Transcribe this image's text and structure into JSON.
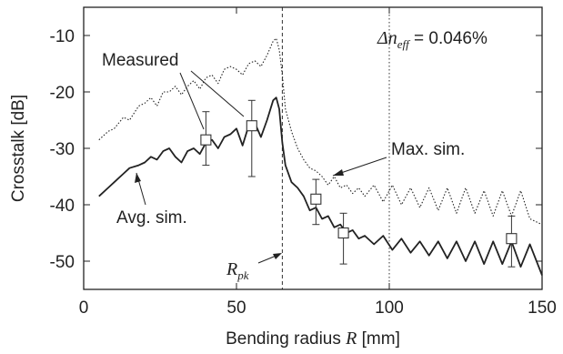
{
  "chart_data": {
    "type": "line",
    "xlabel": "Bending radius",
    "xlabel_var": "R",
    "xlabel_unit": "[mm]",
    "ylabel": "Crosstalk [dB]",
    "xlim": [
      0,
      150
    ],
    "ylim": [
      -55,
      -5
    ],
    "x_ticks": [
      0,
      50,
      100,
      150
    ],
    "y_ticks": [
      -10,
      -20,
      -30,
      -40,
      -50
    ],
    "grid": false,
    "annotations": {
      "delta_neff_symbol": "Δn",
      "delta_neff_sub": "eff",
      "delta_neff_value": "= 0.046%",
      "measured": "Measured",
      "max_sim": "Max. sim.",
      "avg_sim": "Avg. sim.",
      "rpk_main": "R",
      "rpk_sub": "pk"
    },
    "reference_lines": [
      {
        "x": 65,
        "style": "dashed"
      },
      {
        "x": 100,
        "style": "dotted"
      }
    ],
    "series": [
      {
        "name": "Avg. sim.",
        "style": "solid",
        "x": [
          5,
          8,
          10,
          13,
          15,
          18,
          20,
          22,
          24,
          26,
          28,
          30,
          32,
          34,
          36,
          38,
          40,
          42,
          44,
          46,
          48,
          50,
          52,
          54,
          56,
          58,
          60,
          62,
          63,
          64,
          65,
          66,
          68,
          70,
          72,
          74,
          76,
          78,
          80,
          82,
          84,
          86,
          88,
          90,
          92,
          95,
          98,
          101,
          104,
          107,
          110,
          113,
          116,
          119,
          122,
          125,
          128,
          131,
          134,
          137,
          140,
          143,
          146,
          150
        ],
        "y": [
          -38.5,
          -37,
          -36,
          -34.5,
          -33.5,
          -33,
          -32.5,
          -31.5,
          -32,
          -30.5,
          -30,
          -31.5,
          -32.5,
          -30.5,
          -30,
          -31,
          -29,
          -28.5,
          -30,
          -28,
          -27.5,
          -26.5,
          -29.5,
          -26,
          -25.5,
          -28,
          -25,
          -21.5,
          -21,
          -23,
          -29,
          -33,
          -36,
          -37,
          -38.5,
          -41,
          -40.5,
          -42.5,
          -42,
          -44,
          -43.5,
          -45,
          -44.5,
          -46,
          -45.5,
          -47,
          -45.5,
          -48,
          -46,
          -48.5,
          -46.5,
          -49,
          -46.5,
          -49.5,
          -46.5,
          -50,
          -46.5,
          -50.5,
          -46.5,
          -50.5,
          -46.5,
          -51,
          -47,
          -52.5
        ]
      },
      {
        "name": "Max. sim.",
        "style": "dotted",
        "x": [
          5,
          8,
          10,
          13,
          15,
          18,
          20,
          22,
          24,
          26,
          28,
          30,
          32,
          34,
          36,
          38,
          40,
          42,
          44,
          46,
          48,
          50,
          52,
          54,
          56,
          58,
          60,
          62,
          63,
          64,
          65,
          66,
          68,
          70,
          72,
          74,
          76,
          78,
          80,
          82,
          84,
          86,
          88,
          90,
          92,
          95,
          98,
          101,
          104,
          107,
          110,
          113,
          116,
          119,
          122,
          125,
          128,
          131,
          134,
          137,
          140,
          143,
          146,
          150
        ],
        "y": [
          -28.5,
          -27,
          -26.5,
          -24.5,
          -25,
          -22.5,
          -22,
          -21,
          -22.5,
          -20,
          -20,
          -19,
          -20.5,
          -19,
          -18,
          -19.5,
          -17.5,
          -17,
          -18.5,
          -16,
          -15.5,
          -16,
          -17,
          -15,
          -14.5,
          -15.5,
          -13.5,
          -11,
          -10.5,
          -12.5,
          -17,
          -23,
          -27,
          -30,
          -32,
          -33.5,
          -34,
          -35,
          -36.5,
          -35,
          -37,
          -36.5,
          -38,
          -37,
          -38.5,
          -36.5,
          -39.5,
          -36.5,
          -40,
          -37,
          -40.5,
          -37,
          -41,
          -37,
          -41.5,
          -37,
          -41.5,
          -37.5,
          -42,
          -37.5,
          -42,
          -37.5,
          -42.5,
          -43.5
        ]
      },
      {
        "name": "Measured",
        "type": "errorbar",
        "x": [
          40,
          55,
          76,
          85,
          140
        ],
        "y": [
          -28.5,
          -26,
          -39,
          -45,
          -46
        ],
        "err_low": [
          -33,
          -35,
          -43.5,
          -50.5,
          -51
        ],
        "err_high": [
          -23.5,
          -21.5,
          -35.5,
          -41.5,
          -42
        ]
      }
    ]
  }
}
